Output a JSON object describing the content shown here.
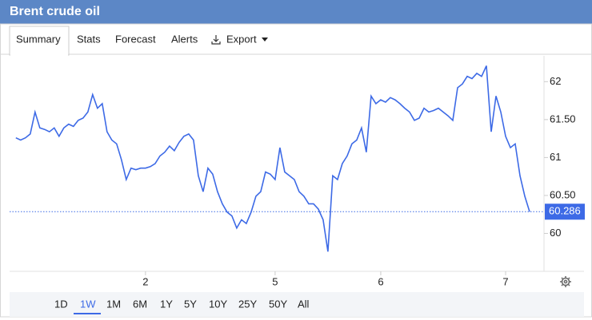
{
  "header": {
    "title": "Brent crude oil"
  },
  "tabs": [
    "Summary",
    "Stats",
    "Forecast",
    "Alerts",
    "Export"
  ],
  "active_tab": 0,
  "ranges": [
    "1D",
    "1W",
    "1M",
    "6M",
    "1Y",
    "5Y",
    "10Y",
    "25Y",
    "50Y",
    "All"
  ],
  "active_range": 1,
  "chart_data": {
    "type": "line",
    "color": "#3d6ae6",
    "values": [
      61.26,
      61.23,
      61.26,
      61.31,
      61.6,
      61.39,
      61.37,
      61.34,
      61.39,
      61.28,
      61.39,
      61.44,
      61.41,
      61.49,
      61.52,
      61.6,
      61.83,
      61.65,
      61.71,
      61.34,
      61.23,
      61.18,
      60.97,
      60.71,
      60.86,
      60.84,
      60.86,
      60.86,
      60.88,
      60.92,
      61.02,
      61.07,
      61.15,
      61.09,
      61.2,
      61.28,
      61.31,
      61.23,
      60.76,
      60.55,
      60.86,
      60.78,
      60.55,
      60.39,
      60.28,
      60.23,
      60.07,
      60.18,
      60.13,
      60.28,
      60.49,
      60.55,
      60.81,
      60.78,
      60.71,
      61.13,
      60.81,
      60.76,
      60.71,
      60.55,
      60.49,
      60.39,
      60.39,
      60.32,
      60.18,
      59.76,
      60.76,
      60.71,
      60.92,
      61.02,
      61.18,
      61.23,
      61.39,
      61.07,
      61.81,
      61.71,
      61.76,
      61.73,
      61.79,
      61.76,
      61.71,
      61.65,
      61.6,
      61.49,
      61.52,
      61.65,
      61.6,
      61.62,
      61.65,
      61.6,
      61.55,
      61.49,
      61.92,
      61.97,
      62.07,
      62.04,
      62.11,
      62.07,
      62.21,
      61.34,
      61.81,
      61.6,
      61.28,
      61.13,
      61.18,
      60.76,
      60.49,
      60.286
    ],
    "xlim": [
      -1.3,
      110
    ],
    "xticks": [
      {
        "value": 27,
        "label": "2"
      },
      {
        "value": 54,
        "label": "5"
      },
      {
        "value": 76,
        "label": "6"
      },
      {
        "value": 102,
        "label": "7"
      }
    ],
    "ylim": [
      59.5,
      62.34
    ],
    "yticks": [
      60,
      {
        "value": 60.5,
        "label": "60.50"
      },
      61,
      {
        "value": 61.5,
        "label": "61.50"
      },
      62
    ]
  }
}
